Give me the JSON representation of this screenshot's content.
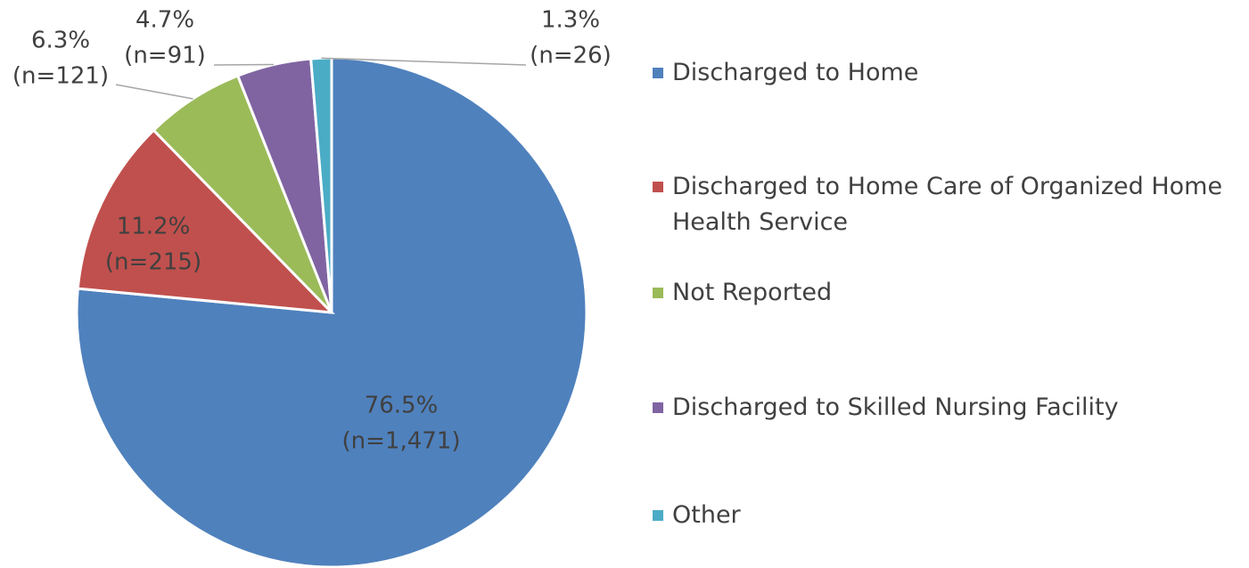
{
  "chart_data": {
    "type": "pie",
    "categories": [
      "Discharged to Home",
      "Discharged to Home Care of Organized Home Health Service",
      "Not Reported",
      "Discharged to Skilled Nursing Facility",
      "Other"
    ],
    "values": [
      76.5,
      11.2,
      6.3,
      4.7,
      1.3
    ],
    "value_labels": [
      "76.5%",
      "11.2%",
      "6.3%",
      "4.7%",
      "1.3%"
    ],
    "counts": [
      1471,
      215,
      121,
      91,
      26
    ],
    "count_labels": [
      "(n=1,471)",
      "(n=215)",
      "(n=121)",
      "(n=91)",
      "(n=26)"
    ],
    "colors": [
      "#4f81bd",
      "#c0504d",
      "#9bbb59",
      "#8064a2",
      "#4bacc6"
    ],
    "legend": "right"
  }
}
